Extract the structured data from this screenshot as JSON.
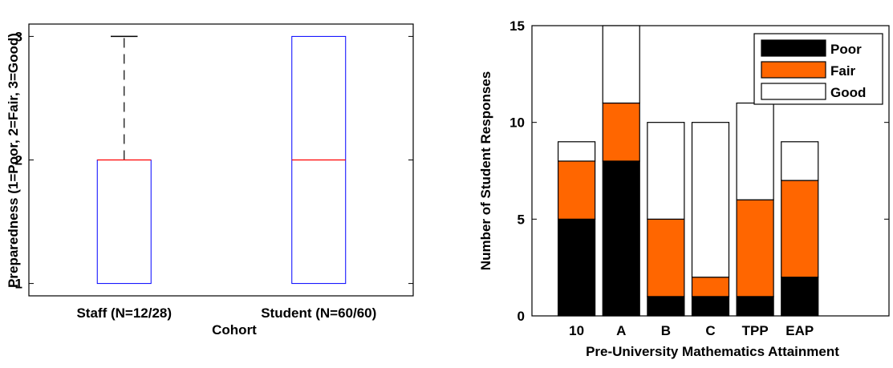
{
  "chart_data": [
    {
      "type": "box",
      "xlabel": "Cohort",
      "ylabel": "Preparedness (1=Poor, 2=Fair, 3=Good)",
      "yticks": [
        1,
        2,
        3
      ],
      "ylim": [
        0.9,
        3.1
      ],
      "grid": false,
      "boxes": [
        {
          "label": "Staff (N=12/28)",
          "min": 1,
          "q1": 1,
          "median": 2,
          "q3": 2,
          "max": 3
        },
        {
          "label": "Student (N=60/60)",
          "min": 1,
          "q1": 1,
          "median": 2,
          "q3": 3,
          "max": 3
        }
      ],
      "colors": {
        "box": "#0000ff",
        "median": "#ff0000",
        "whisker": "#000000"
      }
    },
    {
      "type": "bar",
      "stacked": true,
      "xlabel": "Pre-University Mathematics Attainment",
      "ylabel": "Number of Student Responses",
      "categories": [
        "10",
        "A",
        "B",
        "C",
        "TPP",
        "EAP"
      ],
      "yticks": [
        0,
        5,
        10,
        15
      ],
      "ylim": [
        0,
        15
      ],
      "grid": false,
      "legend_position": "top-right",
      "series": [
        {
          "name": "Poor",
          "values": [
            5,
            8,
            1,
            1,
            1,
            2
          ],
          "color": "#000000"
        },
        {
          "name": "Fair",
          "values": [
            3,
            3,
            4,
            1,
            5,
            5
          ],
          "color": "#ff6600"
        },
        {
          "name": "Good",
          "values": [
            1,
            4,
            5,
            8,
            5,
            2
          ],
          "color": "#ffffff"
        }
      ]
    }
  ]
}
